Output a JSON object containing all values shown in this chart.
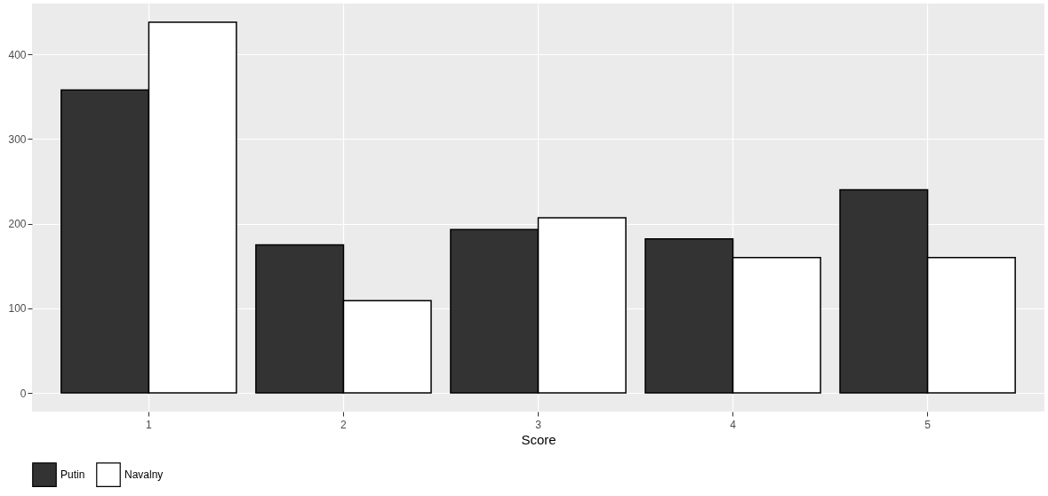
{
  "chart_data": {
    "type": "bar",
    "xlabel": "Score",
    "categories": [
      "1",
      "2",
      "3",
      "4",
      "5"
    ],
    "series": [
      {
        "name": "Putin",
        "color": "#333333",
        "values": [
          358,
          175,
          193,
          182,
          240
        ]
      },
      {
        "name": "Navalny",
        "color": "#ffffff",
        "values": [
          438,
          109,
          207,
          160,
          160
        ]
      }
    ],
    "ylim": [
      -22,
      460
    ],
    "yticks": [
      0,
      100,
      200,
      300,
      400
    ],
    "grid": true,
    "legend": "bottom"
  }
}
